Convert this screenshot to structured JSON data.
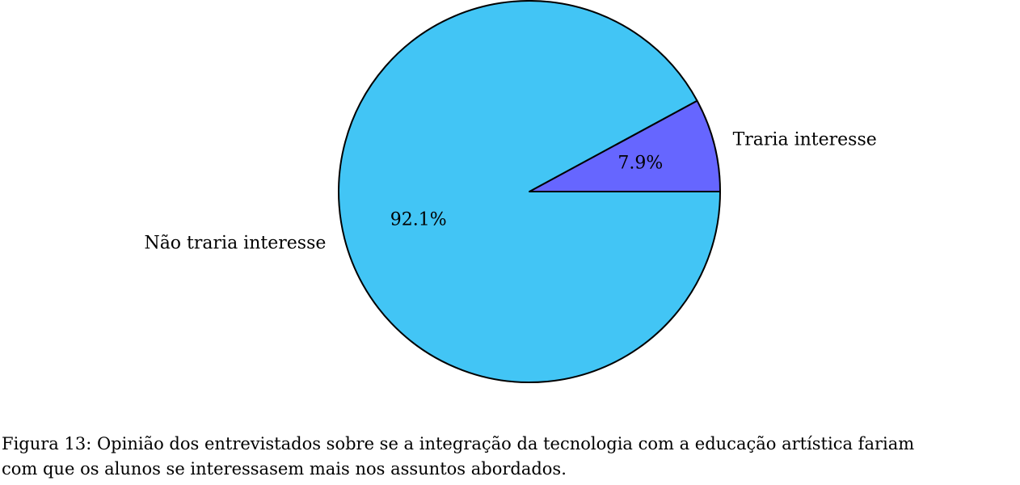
{
  "chart_data": {
    "type": "pie",
    "slices": [
      {
        "label": "Traria interesse",
        "value": 7.9,
        "pct_label": "7.9%",
        "color": "#6666ff"
      },
      {
        "label": "Não traria interesse",
        "value": 92.1,
        "pct_label": "92.1%",
        "color": "#42c5f5"
      }
    ],
    "start_angle_deg": 0,
    "direction": "counterclockwise",
    "edge_color": "#000000"
  },
  "caption": {
    "line1": "Figura 13: Opinião dos entrevistados sobre se a integração da tecnologia com a educação artística fariam",
    "line2": "com que os alunos se interessasem mais nos assuntos abordados."
  }
}
